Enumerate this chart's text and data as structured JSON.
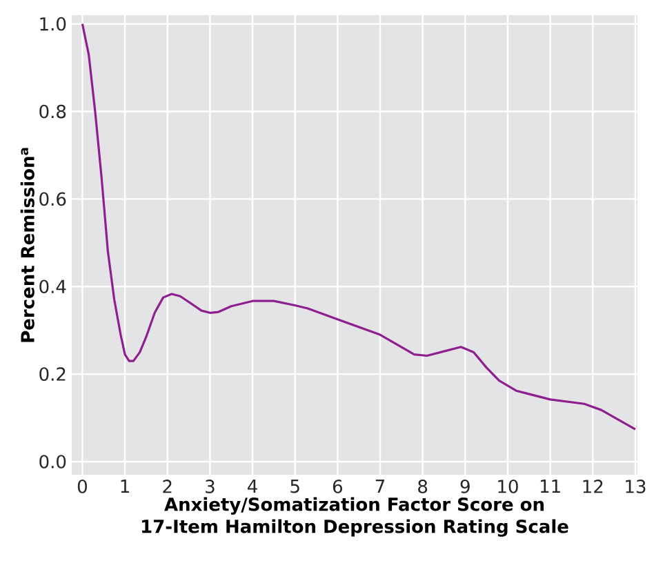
{
  "chart_data": {
    "type": "line",
    "xlabel": "Anxiety/Somatization Factor Score on\n17-Item Hamilton Depression Rating Scale",
    "ylabel": "Percent Remission$^{a}$",
    "x": [
      0,
      0.15,
      0.3,
      0.45,
      0.6,
      0.75,
      0.9,
      1.0,
      1.1,
      1.2,
      1.35,
      1.5,
      1.7,
      1.9,
      2.1,
      2.3,
      2.5,
      2.8,
      3.0,
      3.2,
      3.5,
      4.0,
      4.5,
      5.0,
      5.3,
      6,
      7,
      7.8,
      8.1,
      8.5,
      8.9,
      9.2,
      9.5,
      9.8,
      10.2,
      11,
      11.8,
      12.2,
      13
    ],
    "series": [
      {
        "color": "#8e1f8e",
        "values": [
          1.0,
          0.93,
          0.8,
          0.65,
          0.48,
          0.37,
          0.29,
          0.245,
          0.23,
          0.23,
          0.25,
          0.285,
          0.34,
          0.375,
          0.383,
          0.378,
          0.365,
          0.345,
          0.34,
          0.342,
          0.355,
          0.367,
          0.367,
          0.357,
          0.35,
          0.325,
          0.29,
          0.245,
          0.242,
          0.252,
          0.262,
          0.25,
          0.215,
          0.185,
          0.162,
          0.142,
          0.132,
          0.118,
          0.074
        ]
      }
    ],
    "xlim": [
      -0.25,
      13.05
    ],
    "ylim": [
      -0.03,
      1.02
    ],
    "xticks": [
      0,
      1,
      2,
      3,
      4,
      5,
      6,
      7,
      8,
      9,
      10,
      11,
      12,
      13
    ],
    "yticks": [
      {
        "value": 0,
        "label": "0.0"
      },
      0.2,
      0.4,
      0.6,
      0.8,
      {
        "value": 1,
        "label": "1.0"
      }
    ],
    "grid": true,
    "marker": "none",
    "line_style": "solid"
  }
}
